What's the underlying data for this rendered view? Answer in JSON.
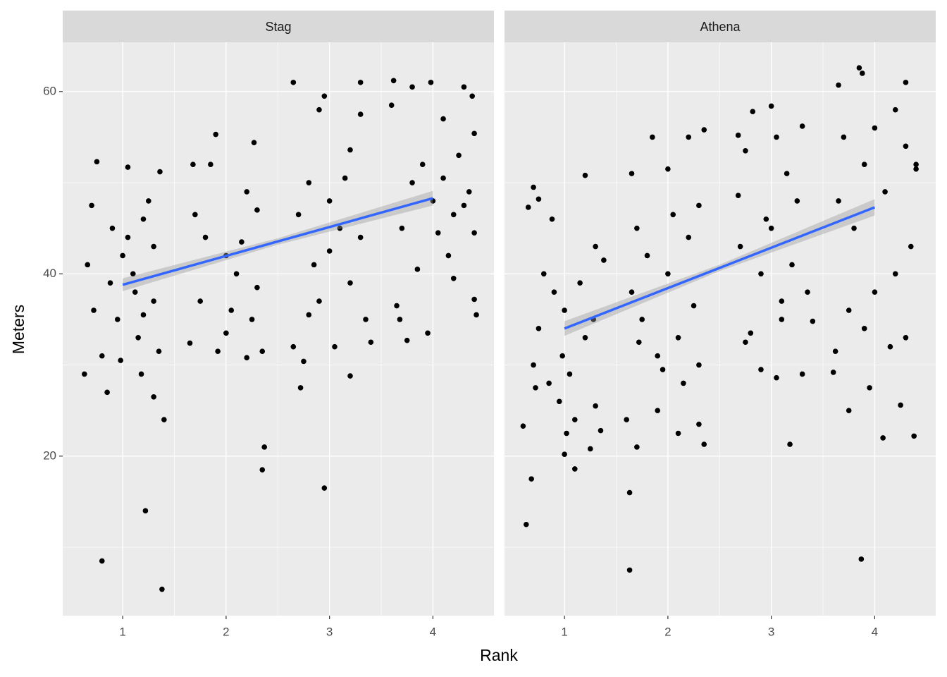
{
  "chart_data": {
    "type": "scatter",
    "x_label": "Rank",
    "y_label": "Meters",
    "xlim": [
      0.42,
      4.59
    ],
    "ylim": [
      2.5,
      65.4
    ],
    "xticks": [
      1,
      2,
      3,
      4
    ],
    "yticks": [
      20,
      40,
      60
    ],
    "x_minor_ticks": [
      1.5,
      2.5,
      3.5
    ],
    "y_minor_ticks": [
      10,
      30,
      50
    ],
    "grid": true,
    "point_color": "#000000",
    "fit_color": "#3366ff",
    "band_color": "#999999",
    "panels": [
      {
        "title": "Stag",
        "x": [
          0.63,
          0.8,
          0.75,
          0.85,
          1.05,
          1.22,
          1.38,
          1.4,
          1.3,
          1.18,
          0.7,
          0.9,
          1.0,
          1.1,
          1.2,
          0.95,
          1.15,
          0.72,
          1.3,
          1.35,
          0.8,
          1.25,
          0.88,
          1.05,
          1.3,
          0.66,
          1.12,
          1.36,
          0.98,
          1.2,
          1.9,
          2.35,
          2.37,
          2.27,
          1.65,
          1.92,
          2.0,
          2.2,
          2.35,
          1.7,
          1.8,
          2.1,
          2.2,
          2.3,
          1.75,
          2.05,
          2.25,
          1.85,
          2.0,
          2.3,
          1.68,
          2.15,
          2.95,
          3.2,
          2.65,
          2.95,
          3.3,
          3.2,
          2.72,
          2.75,
          2.65,
          3.05,
          3.4,
          2.8,
          3.0,
          3.1,
          3.3,
          2.85,
          3.2,
          2.9,
          3.35,
          2.7,
          3.15,
          3.0,
          3.3,
          2.9,
          2.8,
          3.62,
          3.8,
          3.98,
          4.1,
          4.3,
          4.38,
          4.4,
          3.75,
          3.95,
          4.42,
          4.4,
          3.68,
          4.2,
          3.6,
          3.8,
          4.0,
          4.2,
          4.35,
          3.9,
          4.1,
          4.3,
          3.7,
          4.25,
          3.85,
          4.05,
          4.4,
          3.65,
          4.15
        ],
        "y": [
          29,
          8.5,
          52.3,
          27,
          51.7,
          14,
          5.4,
          24,
          26.5,
          29,
          47.5,
          45,
          42,
          40,
          46,
          35,
          33,
          36,
          37,
          31.5,
          31,
          48,
          39,
          44,
          43,
          41,
          38,
          51.2,
          30.5,
          35.5,
          55.3,
          18.5,
          21,
          54.4,
          32.4,
          31.5,
          33.5,
          30.8,
          31.5,
          46.5,
          44,
          40,
          49,
          47,
          37,
          36,
          35,
          52,
          42,
          38.5,
          52,
          43.5,
          16.5,
          28.8,
          61,
          59.5,
          61,
          53.6,
          27.5,
          30.4,
          32,
          32,
          32.5,
          50,
          48,
          45,
          44,
          41,
          39,
          37,
          35,
          46.5,
          50.5,
          42.5,
          57.5,
          58,
          35.5,
          61.2,
          60.5,
          61,
          57,
          60.5,
          59.5,
          55.4,
          32.7,
          33.5,
          35.5,
          37.2,
          35,
          39.5,
          58.5,
          50,
          48,
          46.5,
          49,
          52,
          50.5,
          47.5,
          45,
          53,
          40.5,
          44.5,
          44.5,
          36.5,
          42
        ],
        "fit": {
          "x": [
            1,
            4
          ],
          "y": [
            38.8,
            48.3
          ]
        },
        "band": {
          "x": [
            1,
            2.5,
            4
          ],
          "lower": [
            38.1,
            43.2,
            47.5
          ],
          "upper": [
            39.5,
            43.9,
            49.1
          ]
        }
      },
      {
        "title": "Athena",
        "x": [
          0.63,
          0.68,
          0.6,
          0.7,
          0.75,
          1.1,
          1.0,
          1.25,
          1.35,
          0.65,
          0.8,
          0.9,
          0.75,
          1.0,
          1.2,
          0.7,
          0.85,
          0.95,
          1.1,
          1.3,
          1.3,
          1.38,
          1.2,
          1.15,
          0.98,
          1.05,
          0.72,
          0.88,
          1.02,
          1.28,
          1.63,
          1.63,
          1.6,
          1.7,
          1.65,
          1.85,
          2.0,
          2.2,
          2.35,
          2.35,
          2.3,
          2.1,
          1.9,
          1.7,
          1.8,
          2.0,
          2.2,
          1.75,
          2.1,
          2.3,
          1.9,
          1.65,
          2.05,
          2.25,
          2.15,
          1.95,
          2.3,
          1.72,
          2.68,
          3.0,
          2.68,
          2.82,
          3.18,
          3.05,
          3.3,
          2.9,
          2.75,
          2.8,
          2.7,
          3.0,
          3.2,
          3.35,
          2.9,
          3.1,
          3.25,
          3.15,
          3.05,
          2.75,
          3.3,
          3.1,
          3.4,
          2.95,
          3.85,
          3.88,
          3.65,
          4.3,
          4.2,
          3.87,
          3.75,
          4.08,
          4.38,
          4.25,
          3.6,
          3.75,
          4.0,
          4.2,
          4.3,
          3.9,
          3.7,
          3.9,
          4.0,
          4.1,
          4.3,
          4.4,
          3.65,
          3.8,
          4.35,
          3.95,
          4.15,
          3.62,
          4.4
        ],
        "y": [
          12.5,
          17.5,
          23.3,
          49.5,
          48.2,
          18.6,
          20.2,
          20.8,
          22.8,
          47.3,
          40,
          38,
          34,
          36,
          33,
          30,
          28,
          26,
          24,
          25.5,
          43,
          41.5,
          50.8,
          39,
          31,
          29,
          27.5,
          46,
          22.5,
          35,
          7.5,
          16,
          24,
          21,
          51,
          55,
          51.5,
          55,
          55.8,
          21.3,
          23.5,
          22.5,
          25,
          45,
          42,
          40,
          44,
          35,
          33,
          30,
          31,
          38,
          46.5,
          36.5,
          28,
          29.5,
          47.5,
          32.5,
          48.6,
          58.4,
          55.2,
          57.8,
          21.3,
          28.6,
          29,
          29.5,
          32.5,
          33.5,
          43,
          45,
          41,
          38,
          40,
          37,
          48,
          51,
          55,
          53.5,
          56.2,
          35,
          34.8,
          46,
          62.6,
          62,
          60.7,
          61,
          58,
          8.7,
          25,
          22,
          22.2,
          25.6,
          29.2,
          36,
          38,
          40,
          33,
          34,
          55,
          52,
          56,
          49,
          54,
          52,
          48,
          45,
          43,
          27.5,
          32,
          31.5,
          51.5
        ],
        "fit": {
          "x": [
            1,
            4
          ],
          "y": [
            34,
            47.3
          ]
        },
        "band": {
          "x": [
            1,
            2.5,
            4
          ],
          "lower": [
            33.2,
            40.3,
            46.4
          ],
          "upper": [
            34.8,
            41.0,
            48.2
          ]
        }
      }
    ]
  }
}
